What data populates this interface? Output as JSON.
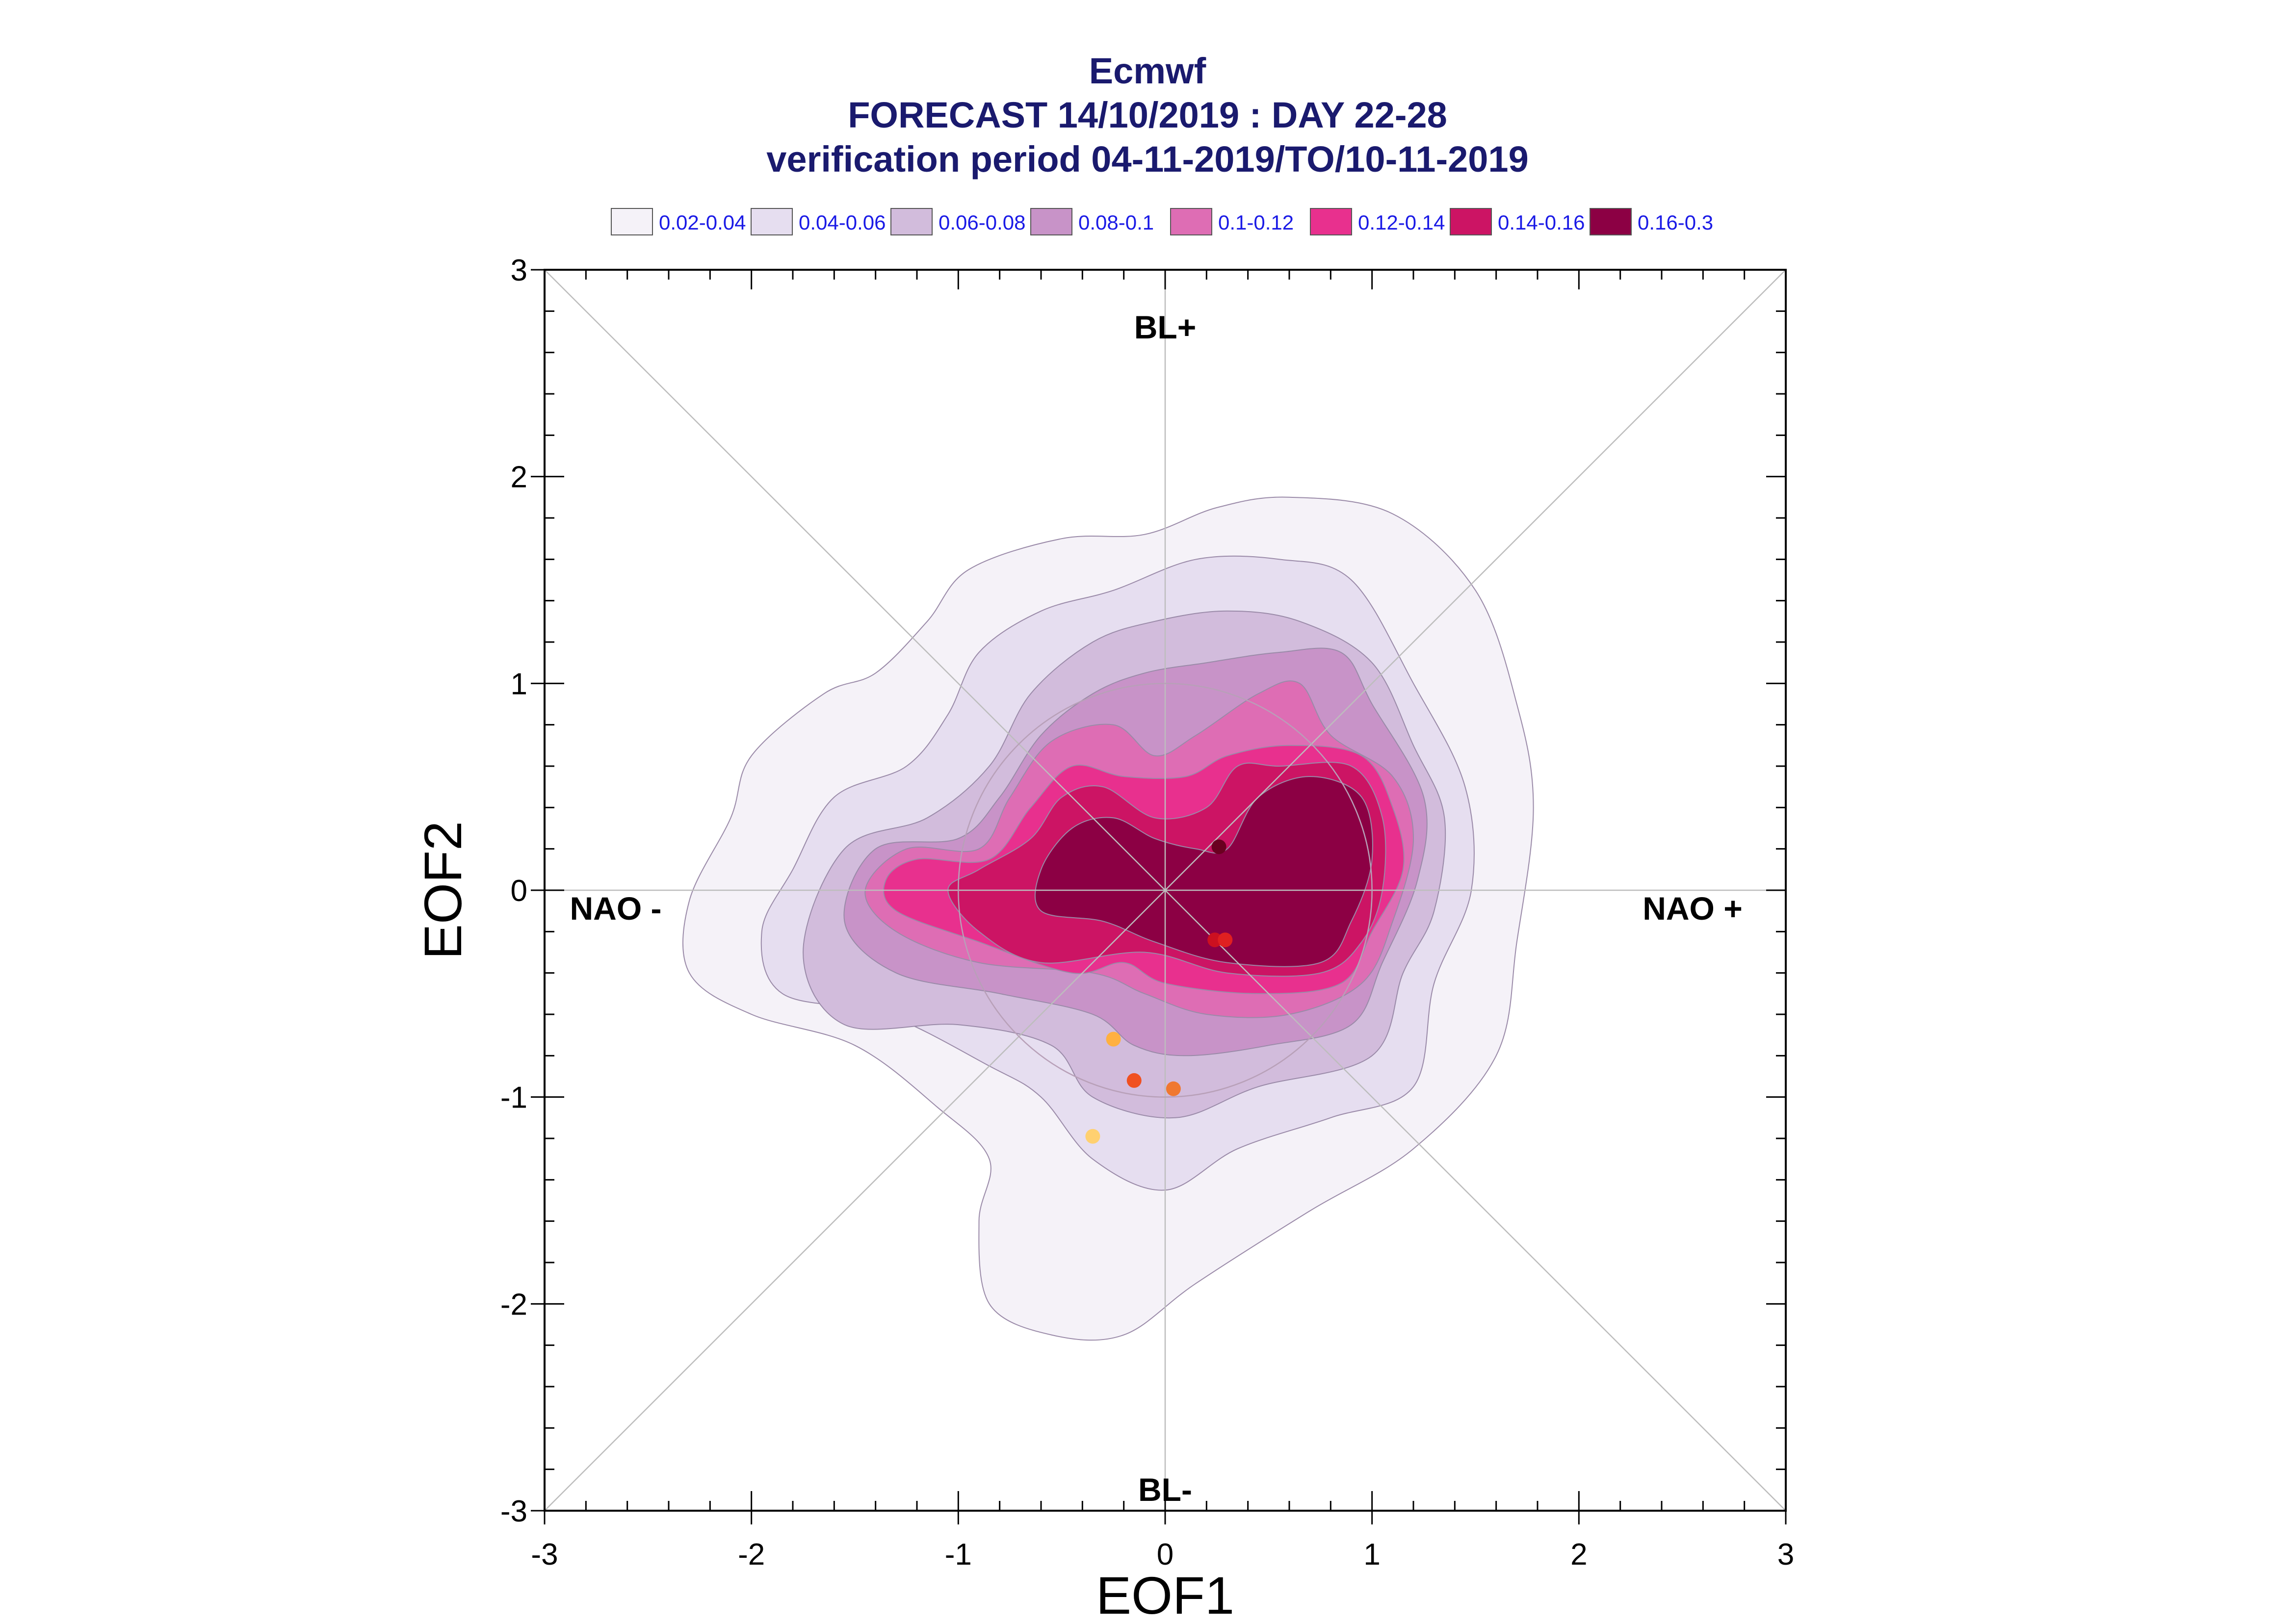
{
  "chart_data": {
    "type": "contour",
    "title": "Ecmwf",
    "subtitle_lines": [
      "FORECAST 14/10/2019 : DAY 22-28",
      "verification period 04-11-2019/TO/10-11-2019"
    ],
    "xlabel": "EOF1",
    "ylabel": "EOF2",
    "xlim": [
      -3,
      3
    ],
    "ylim": [
      -3,
      3
    ],
    "xticks": [
      "-3",
      "-2",
      "-1",
      "0",
      "1",
      "2",
      "3"
    ],
    "yticks": [
      "-3",
      "-2",
      "-1",
      "0",
      "1",
      "2",
      "3"
    ],
    "regime_labels": {
      "top": "BL+",
      "bottom": "BL-",
      "left": "NAO -",
      "right": "NAO +"
    },
    "legend_position": "top",
    "density_levels": [
      {
        "label": "0.02-0.04",
        "color": "#f5f2f8"
      },
      {
        "label": "0.04-0.06",
        "color": "#e6def0"
      },
      {
        "label": "0.06-0.08",
        "color": "#d2bcdc"
      },
      {
        "label": "0.08-0.1",
        "color": "#c893c8"
      },
      {
        "label": "0.1-0.12",
        "color": "#de6db4"
      },
      {
        "label": "0.12-0.14",
        "color": "#e8308e"
      },
      {
        "label": "0.14-0.16",
        "color": "#cc1464"
      },
      {
        "label": "0.16-0.3",
        "color": "#8c0044"
      }
    ],
    "contours": [
      {
        "level": 0,
        "points": [
          [
            -0.85,
            -1.3
          ],
          [
            -1.1,
            -1.05
          ],
          [
            -1.5,
            -0.75
          ],
          [
            -2.0,
            -0.6
          ],
          [
            -2.3,
            -0.4
          ],
          [
            -2.3,
            -0.05
          ],
          [
            -2.1,
            0.35
          ],
          [
            -2.0,
            0.65
          ],
          [
            -1.65,
            0.95
          ],
          [
            -1.4,
            1.05
          ],
          [
            -1.15,
            1.3
          ],
          [
            -0.95,
            1.55
          ],
          [
            -0.5,
            1.7
          ],
          [
            -0.1,
            1.72
          ],
          [
            0.25,
            1.85
          ],
          [
            0.6,
            1.9
          ],
          [
            1.1,
            1.82
          ],
          [
            1.5,
            1.45
          ],
          [
            1.7,
            0.9
          ],
          [
            1.78,
            0.4
          ],
          [
            1.7,
            -0.25
          ],
          [
            1.6,
            -0.8
          ],
          [
            1.2,
            -1.25
          ],
          [
            0.7,
            -1.55
          ],
          [
            0.15,
            -1.9
          ],
          [
            -0.2,
            -2.15
          ],
          [
            -0.55,
            -2.15
          ],
          [
            -0.85,
            -2.0
          ],
          [
            -0.9,
            -1.6
          ]
        ]
      },
      {
        "level": 1,
        "points": [
          [
            -0.85,
            -0.85
          ],
          [
            -1.35,
            -0.6
          ],
          [
            -1.85,
            -0.5
          ],
          [
            -1.95,
            -0.2
          ],
          [
            -1.8,
            0.1
          ],
          [
            -1.6,
            0.45
          ],
          [
            -1.25,
            0.6
          ],
          [
            -1.05,
            0.85
          ],
          [
            -0.9,
            1.15
          ],
          [
            -0.6,
            1.35
          ],
          [
            -0.25,
            1.45
          ],
          [
            0.15,
            1.6
          ],
          [
            0.55,
            1.6
          ],
          [
            0.9,
            1.5
          ],
          [
            1.2,
            1.0
          ],
          [
            1.45,
            0.5
          ],
          [
            1.48,
            0.0
          ],
          [
            1.3,
            -0.45
          ],
          [
            1.2,
            -0.95
          ],
          [
            0.8,
            -1.1
          ],
          [
            0.35,
            -1.25
          ],
          [
            0.0,
            -1.45
          ],
          [
            -0.35,
            -1.3
          ],
          [
            -0.6,
            -1.0
          ]
        ]
      },
      {
        "level": 2,
        "points": [
          [
            -0.55,
            -0.75
          ],
          [
            -1.0,
            -0.65
          ],
          [
            -1.55,
            -0.65
          ],
          [
            -1.75,
            -0.3
          ],
          [
            -1.55,
            0.2
          ],
          [
            -1.15,
            0.35
          ],
          [
            -0.85,
            0.6
          ],
          [
            -0.65,
            0.95
          ],
          [
            -0.35,
            1.2
          ],
          [
            -0.05,
            1.3
          ],
          [
            0.3,
            1.35
          ],
          [
            0.65,
            1.3
          ],
          [
            1.0,
            1.1
          ],
          [
            1.2,
            0.7
          ],
          [
            1.35,
            0.35
          ],
          [
            1.3,
            -0.1
          ],
          [
            1.15,
            -0.4
          ],
          [
            1.0,
            -0.8
          ],
          [
            0.45,
            -0.95
          ],
          [
            0.05,
            -1.1
          ],
          [
            -0.35,
            -1.0
          ]
        ]
      },
      {
        "level": 3,
        "points": [
          [
            -0.35,
            -0.6
          ],
          [
            -0.8,
            -0.5
          ],
          [
            -1.3,
            -0.4
          ],
          [
            -1.55,
            -0.15
          ],
          [
            -1.4,
            0.2
          ],
          [
            -1.0,
            0.25
          ],
          [
            -0.8,
            0.45
          ],
          [
            -0.6,
            0.75
          ],
          [
            -0.35,
            0.95
          ],
          [
            -0.1,
            1.05
          ],
          [
            0.2,
            1.1
          ],
          [
            0.55,
            1.15
          ],
          [
            0.85,
            1.15
          ],
          [
            1.0,
            0.9
          ],
          [
            1.25,
            0.45
          ],
          [
            1.22,
            0.05
          ],
          [
            1.05,
            -0.35
          ],
          [
            0.9,
            -0.65
          ],
          [
            0.5,
            -0.75
          ],
          [
            0.1,
            -0.8
          ],
          [
            -0.15,
            -0.75
          ]
        ]
      },
      {
        "level": 4,
        "points": [
          [
            -0.35,
            -0.4
          ],
          [
            -0.9,
            -0.35
          ],
          [
            -1.3,
            -0.2
          ],
          [
            -1.45,
            0.0
          ],
          [
            -1.25,
            0.2
          ],
          [
            -0.9,
            0.2
          ],
          [
            -0.75,
            0.45
          ],
          [
            -0.55,
            0.72
          ],
          [
            -0.25,
            0.8
          ],
          [
            -0.05,
            0.65
          ],
          [
            0.15,
            0.75
          ],
          [
            0.45,
            0.95
          ],
          [
            0.65,
            1.0
          ],
          [
            0.8,
            0.75
          ],
          [
            1.1,
            0.55
          ],
          [
            1.2,
            0.25
          ],
          [
            1.1,
            -0.15
          ],
          [
            0.95,
            -0.45
          ],
          [
            0.6,
            -0.6
          ],
          [
            0.2,
            -0.6
          ],
          [
            -0.1,
            -0.5
          ]
        ]
      },
      {
        "level": 5,
        "points": [
          [
            -0.45,
            -0.4
          ],
          [
            -0.9,
            -0.25
          ],
          [
            -1.3,
            -0.1
          ],
          [
            -1.35,
            0.05
          ],
          [
            -1.2,
            0.15
          ],
          [
            -0.85,
            0.15
          ],
          [
            -0.65,
            0.4
          ],
          [
            -0.45,
            0.6
          ],
          [
            -0.2,
            0.55
          ],
          [
            0.1,
            0.55
          ],
          [
            0.3,
            0.65
          ],
          [
            0.6,
            0.7
          ],
          [
            0.95,
            0.65
          ],
          [
            1.1,
            0.4
          ],
          [
            1.15,
            0.1
          ],
          [
            1.0,
            -0.2
          ],
          [
            0.85,
            -0.45
          ],
          [
            0.45,
            -0.5
          ],
          [
            0.0,
            -0.45
          ],
          [
            -0.2,
            -0.35
          ]
        ]
      },
      {
        "level": 6,
        "points": [
          [
            -0.6,
            -0.35
          ],
          [
            -0.9,
            -0.2
          ],
          [
            -1.05,
            0.0
          ],
          [
            -0.9,
            0.1
          ],
          [
            -0.65,
            0.25
          ],
          [
            -0.5,
            0.45
          ],
          [
            -0.3,
            0.5
          ],
          [
            -0.05,
            0.35
          ],
          [
            0.2,
            0.4
          ],
          [
            0.35,
            0.6
          ],
          [
            0.55,
            0.6
          ],
          [
            0.9,
            0.6
          ],
          [
            1.05,
            0.35
          ],
          [
            1.05,
            0.0
          ],
          [
            0.95,
            -0.25
          ],
          [
            0.75,
            -0.4
          ],
          [
            0.3,
            -0.4
          ],
          [
            -0.1,
            -0.3
          ]
        ]
      },
      {
        "level": 7,
        "points": [
          [
            -0.6,
            -0.1
          ],
          [
            -0.6,
            0.1
          ],
          [
            -0.45,
            0.3
          ],
          [
            -0.25,
            0.35
          ],
          [
            -0.05,
            0.25
          ],
          [
            0.15,
            0.2
          ],
          [
            0.3,
            0.2
          ],
          [
            0.45,
            0.45
          ],
          [
            0.7,
            0.55
          ],
          [
            0.95,
            0.45
          ],
          [
            1.0,
            0.15
          ],
          [
            0.9,
            -0.15
          ],
          [
            0.75,
            -0.35
          ],
          [
            0.3,
            -0.35
          ],
          [
            -0.05,
            -0.25
          ],
          [
            -0.3,
            -0.15
          ]
        ]
      }
    ],
    "reference_circle_radius": 1.0,
    "points": [
      {
        "x": 0.26,
        "y": 0.21,
        "color": "#6a0020"
      },
      {
        "x": 0.24,
        "y": -0.24,
        "color": "#cc1020"
      },
      {
        "x": 0.29,
        "y": -0.24,
        "color": "#e02020"
      },
      {
        "x": -0.25,
        "y": -0.72,
        "color": "#ffb040"
      },
      {
        "x": -0.15,
        "y": -0.92,
        "color": "#f05020"
      },
      {
        "x": 0.04,
        "y": -0.96,
        "color": "#f07830"
      },
      {
        "x": -0.35,
        "y": -1.19,
        "color": "#ffd070"
      }
    ]
  }
}
